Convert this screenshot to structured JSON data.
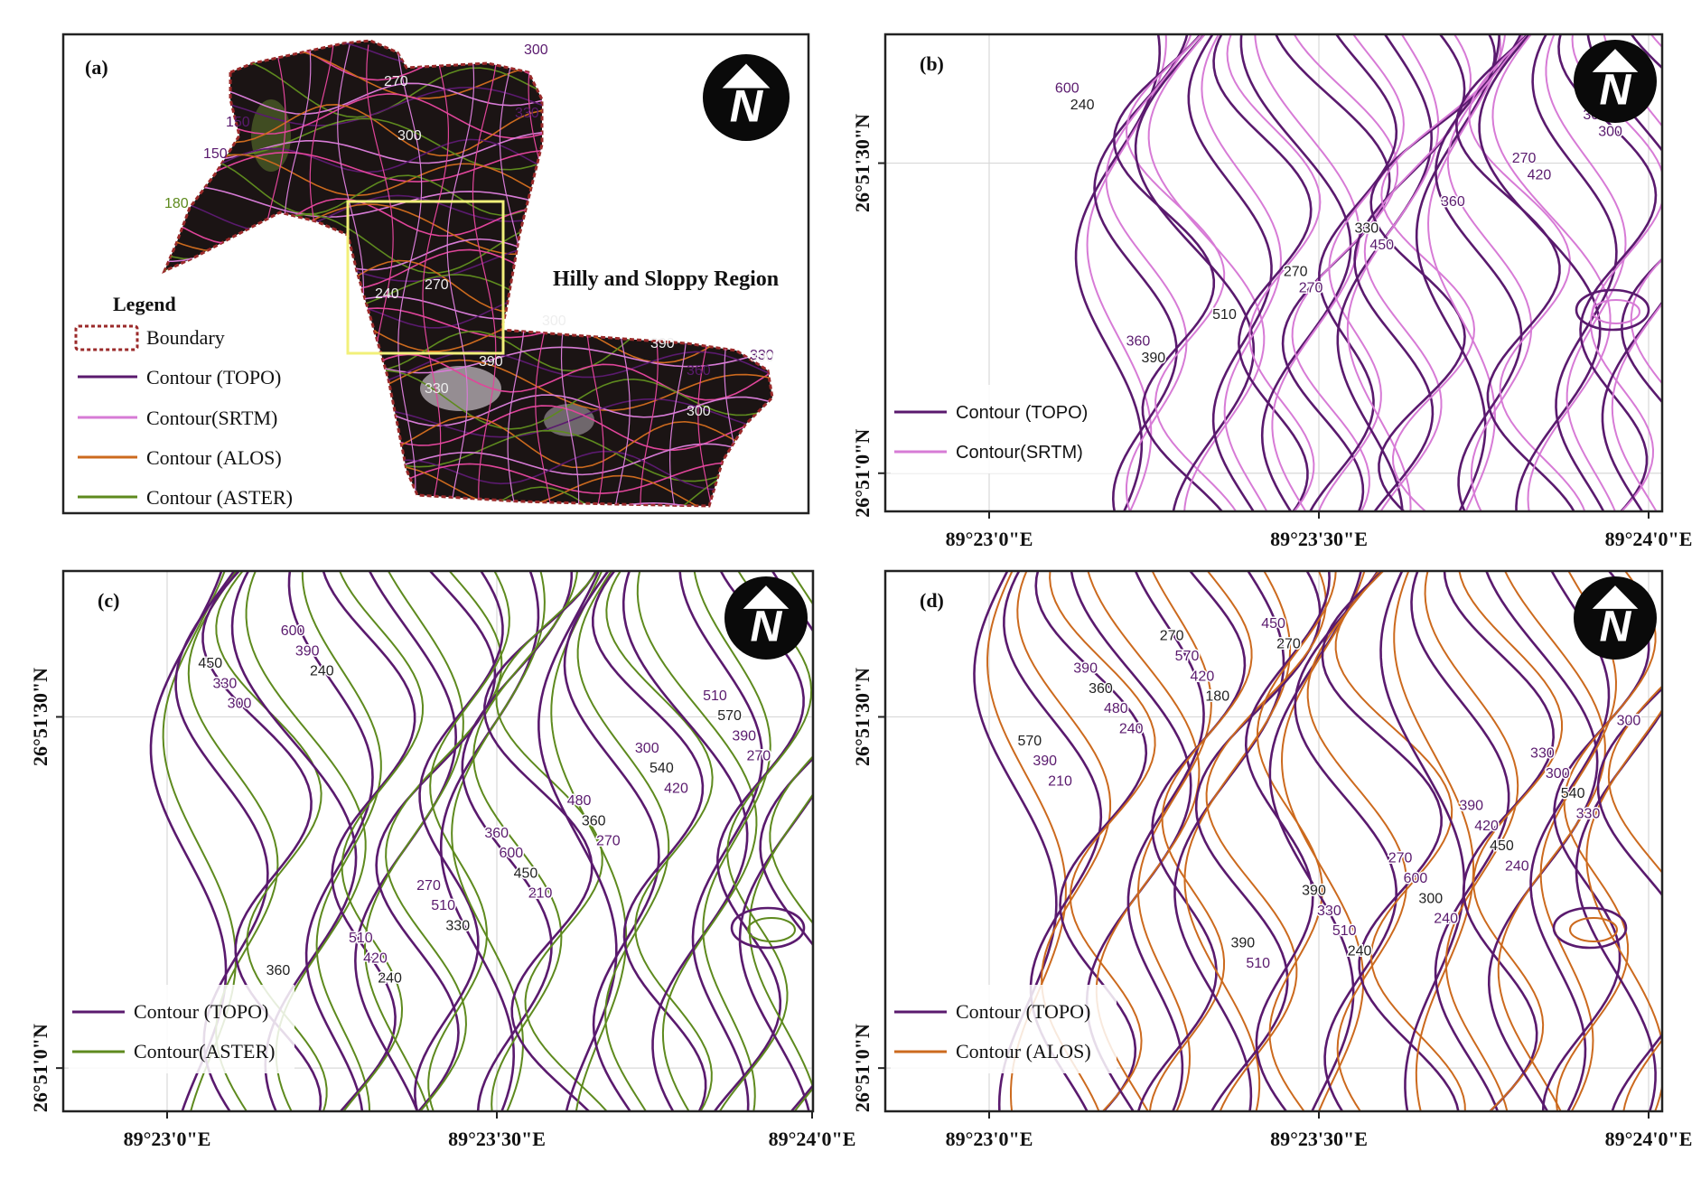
{
  "panels": {
    "a": {
      "label": "(a)",
      "region_label": "Hilly and Sloppy Region",
      "legend_title": "Legend",
      "legend": [
        "Boundary",
        "Contour (TOPO)",
        "Contour(SRTM)",
        "Contour (ALOS)",
        "Contour (ASTER)"
      ],
      "contour_labels": [
        "300",
        "150",
        "150",
        "180",
        "330",
        "300",
        "240",
        "270",
        "270",
        "330",
        "390",
        "300",
        "390",
        "360",
        "330",
        "390",
        "300"
      ]
    },
    "b": {
      "label": "(b)",
      "legend": [
        "Contour (TOPO)",
        "Contour(SRTM)"
      ],
      "contour_labels": [
        "240",
        "270",
        "420",
        "390",
        "450",
        "300",
        "510",
        "360",
        "600",
        "270",
        "270",
        "360",
        "330",
        "300"
      ]
    },
    "c": {
      "label": "(c)",
      "legend": [
        "Contour (TOPO)",
        "Contour(ASTER)"
      ],
      "contour_labels": [
        "240",
        "210",
        "270",
        "240",
        "270",
        "300",
        "330",
        "420",
        "390",
        "450",
        "390",
        "420",
        "360",
        "330",
        "510",
        "540",
        "600",
        "600",
        "570",
        "510",
        "480",
        "450",
        "270",
        "300",
        "360",
        "360",
        "510"
      ]
    },
    "d": {
      "label": "(d)",
      "legend": [
        "Contour (TOPO)",
        "Contour (ALOS)"
      ],
      "contour_labels": [
        "180",
        "240",
        "210",
        "270",
        "240",
        "240",
        "240",
        "330",
        "420",
        "300",
        "390",
        "450",
        "450",
        "480",
        "510",
        "540",
        "570",
        "600",
        "570",
        "510",
        "420",
        "360",
        "330",
        "300",
        "270",
        "270",
        "300",
        "390",
        "390",
        "390",
        "390",
        "330"
      ]
    }
  },
  "axes": {
    "lat_ticks": [
      "26°51'30\"N",
      "26°51'0\"N"
    ],
    "lon_ticks": [
      "89°23'0\"E",
      "89°23'30\"E",
      "89°24'0\"E"
    ]
  },
  "north_arrow_letter": "N",
  "colors": {
    "topo": "#5a1a6e",
    "srtm": "#d77bd6",
    "alos": "#cc6a1e",
    "aster": "#5e8a1e",
    "boundary": "#9b2a2a",
    "study_box": "#f2f07a"
  }
}
